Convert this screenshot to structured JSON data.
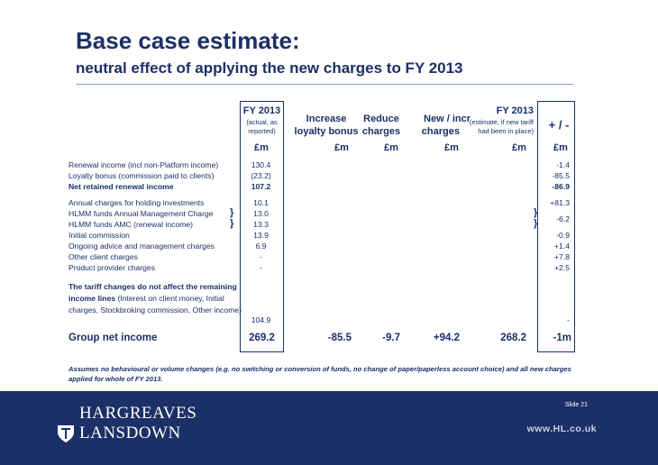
{
  "title": "Base case estimate:",
  "subtitle": "neutral effect of applying the new charges to FY 2013",
  "columns": {
    "fy2013": {
      "label": "FY 2013",
      "sub1": "(actual, as",
      "sub2": "reported)",
      "unit": "£m"
    },
    "loyalty": {
      "label1": "Increase",
      "label2": "loyalty bonus",
      "unit": "£m"
    },
    "reduce": {
      "label1": "Reduce",
      "label2": "charges",
      "unit": "£m"
    },
    "newincr": {
      "label1": "New / incr",
      "label2": "charges",
      "unit": "£m"
    },
    "fy2013est": {
      "label": "FY 2013",
      "sub1": "(estimate, if new tariff",
      "sub2": "had been in place)",
      "unit": "£m"
    },
    "plusminus": {
      "label": "+ / -",
      "unit": "£m"
    }
  },
  "rows": [
    {
      "label": "Renewal income (incl non-Platform income)",
      "fy": "130.4",
      "pm": "-1.4"
    },
    {
      "label": "Loyalty bonus (commission paid to clients)",
      "fy": "(23.2)",
      "pm": "-85.5"
    },
    {
      "label": "Net retained renewal income",
      "fy": "107.2",
      "pm": "-86.9"
    },
    {
      "label": "Annual charges for holding investments",
      "fy": "10.1",
      "pm": "+81.3"
    },
    {
      "label": "HLMM funds Annual Management Charge",
      "fy": "13.0",
      "pm": "-6.2"
    },
    {
      "label": "HLMM funds AMC (renewal income)",
      "fy": "13.3",
      "pm": ""
    },
    {
      "label": "Initial commission",
      "fy": "13.9",
      "pm": "-0.9"
    },
    {
      "label": "Ongoing advice and management charges",
      "fy": "6.9",
      "pm": "+1.4"
    },
    {
      "label": "Other client charges",
      "fy": "-",
      "pm": "+7.8"
    },
    {
      "label": "Product provider charges",
      "fy": "-",
      "pm": "+2.5"
    }
  ],
  "brace": "}",
  "paragraph": {
    "bold": "The tariff changes do not affect the remaining income lines",
    "rest": " (Interest on client money, Initial charges, Stockbroking commission, Other income)",
    "fy": "104.9",
    "pm": "-"
  },
  "total": {
    "label": "Group net income",
    "fy": "269.2",
    "loyalty": "-85.5",
    "reduce": "-9.7",
    "newincr": "+94.2",
    "fy_est": "268.2",
    "pm": "-1m"
  },
  "note": "Assumes no behavioural or volume changes (e.g. no switching or conversion of funds, no change of paper/paperless account choice) and all new charges applied for whole of FY 2013.",
  "footer": {
    "slide": "Slide 21",
    "logo_line1": "HARGREAVES",
    "logo_line2": "LANSDOWN",
    "website": "www.HL.co.uk"
  },
  "colors": {
    "navy": "#1b3067",
    "rule": "#8ea0c2"
  }
}
